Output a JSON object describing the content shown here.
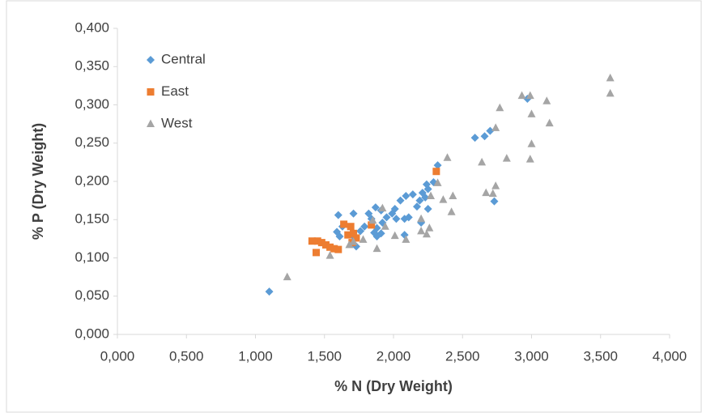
{
  "chart_data": {
    "type": "scatter",
    "x_label": "% N (Dry Weight)",
    "y_label": "% P (Dry Weight)",
    "xlim": [
      0,
      4
    ],
    "ylim": [
      0,
      0.4
    ],
    "xticks": [
      {
        "value": 0,
        "label": "0,000"
      },
      {
        "value": 0.5,
        "label": "0,500"
      },
      {
        "value": 1,
        "label": "1,000"
      },
      {
        "value": 1.5,
        "label": "1,500"
      },
      {
        "value": 2,
        "label": "2,000"
      },
      {
        "value": 2.5,
        "label": "2,500"
      },
      {
        "value": 3,
        "label": "3,000"
      },
      {
        "value": 3.5,
        "label": "3,500"
      },
      {
        "value": 4,
        "label": "4,000"
      }
    ],
    "yticks": [
      {
        "value": 0,
        "label": "0,000"
      },
      {
        "value": 0.05,
        "label": "0,050"
      },
      {
        "value": 0.1,
        "label": "0,100"
      },
      {
        "value": 0.15,
        "label": "0,150"
      },
      {
        "value": 0.2,
        "label": "0,200"
      },
      {
        "value": 0.25,
        "label": "0,250"
      },
      {
        "value": 0.3,
        "label": "0,300"
      },
      {
        "value": 0.35,
        "label": "0,350"
      },
      {
        "value": 0.4,
        "label": "0,400"
      }
    ],
    "grid": false,
    "legend": "upper-left",
    "series": [
      {
        "name": "Central",
        "color": "#5b9bd5",
        "marker": "diamond",
        "x": [
          1.1,
          2.66,
          2.59,
          2.7,
          2.97,
          2.73,
          2.32,
          2.29,
          2.25,
          2.24,
          2.21,
          2.23,
          2.19,
          2.14,
          2.17,
          2.25,
          2.2,
          2.09,
          2.05,
          2.01,
          1.99,
          2.02,
          1.95,
          2.08,
          2.11,
          1.91,
          1.87,
          1.82,
          1.84,
          1.92,
          1.88,
          1.88,
          1.91,
          1.86,
          1.79,
          1.76,
          1.71,
          1.63,
          1.59,
          1.61,
          1.6,
          1.71,
          1.73,
          2.08
        ],
        "y": [
          0.056,
          0.259,
          0.257,
          0.266,
          0.308,
          0.174,
          0.221,
          0.199,
          0.19,
          0.196,
          0.185,
          0.179,
          0.175,
          0.183,
          0.167,
          0.164,
          0.146,
          0.181,
          0.175,
          0.164,
          0.158,
          0.151,
          0.153,
          0.151,
          0.153,
          0.162,
          0.166,
          0.158,
          0.151,
          0.146,
          0.139,
          0.128,
          0.132,
          0.133,
          0.141,
          0.135,
          0.158,
          0.141,
          0.134,
          0.128,
          0.156,
          0.128,
          0.115,
          0.13
        ]
      },
      {
        "name": "East",
        "color": "#ed7d31",
        "marker": "square",
        "x": [
          1.41,
          1.45,
          1.48,
          1.51,
          1.54,
          1.57,
          1.6,
          1.44,
          1.64,
          1.69,
          1.67,
          1.71,
          1.73,
          1.7,
          1.84,
          2.31
        ],
        "y": [
          0.122,
          0.122,
          0.12,
          0.117,
          0.114,
          0.112,
          0.111,
          0.107,
          0.144,
          0.141,
          0.13,
          0.132,
          0.126,
          0.12,
          0.143,
          0.213
        ]
      },
      {
        "name": "West",
        "color": "#a5a5a5",
        "marker": "triangle",
        "x": [
          1.23,
          1.54,
          1.68,
          1.71,
          1.78,
          1.85,
          1.88,
          1.92,
          1.94,
          2.01,
          2.09,
          2.2,
          2.24,
          2.26,
          2.2,
          2.27,
          2.32,
          2.36,
          2.39,
          2.42,
          2.43,
          2.64,
          2.82,
          2.74,
          2.72,
          2.67,
          2.74,
          2.77,
          2.93,
          2.99,
          3.0,
          3.11,
          3.13,
          3.0,
          2.99,
          3.57,
          3.57
        ],
        "y": [
          0.075,
          0.103,
          0.117,
          0.121,
          0.124,
          0.149,
          0.112,
          0.165,
          0.141,
          0.129,
          0.124,
          0.135,
          0.131,
          0.139,
          0.151,
          0.181,
          0.198,
          0.176,
          0.231,
          0.16,
          0.181,
          0.225,
          0.23,
          0.194,
          0.184,
          0.185,
          0.27,
          0.296,
          0.312,
          0.312,
          0.288,
          0.305,
          0.276,
          0.249,
          0.229,
          0.335,
          0.315
        ]
      }
    ]
  }
}
